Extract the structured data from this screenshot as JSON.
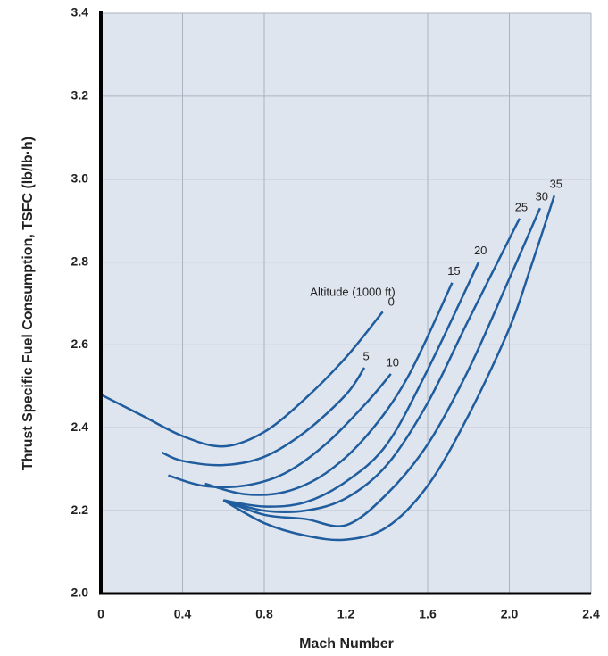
{
  "chart_data": {
    "type": "line",
    "xlabel": "Mach Number",
    "ylabel": "Thrust Specific Fuel Consumption, TSFC (lb/lb·h)",
    "annotation": "Altitude (1000 ft)",
    "xlim": [
      0,
      2.4
    ],
    "ylim": [
      2.0,
      3.4
    ],
    "xticks": [
      0,
      0.4,
      0.8,
      1.2,
      1.6,
      {
        "value": 2.0,
        "label": "2.0"
      },
      2.4
    ],
    "yticks": [
      {
        "value": 2.0,
        "label": "2.0"
      },
      2.2,
      2.4,
      2.6,
      2.8,
      {
        "value": 3.0,
        "label": "3.0"
      },
      3.2,
      3.4
    ],
    "grid": true,
    "series": [
      {
        "name": "0",
        "color": "#1f5d9e",
        "x": [
          0,
          0.2,
          0.4,
          0.6,
          0.8,
          1.0,
          1.2,
          1.38
        ],
        "values": [
          2.48,
          2.43,
          2.38,
          2.355,
          2.39,
          2.47,
          2.57,
          2.68
        ]
      },
      {
        "name": "5",
        "color": "#1f5d9e",
        "x": [
          0.3,
          0.4,
          0.6,
          0.8,
          1.0,
          1.2,
          1.29
        ],
        "values": [
          2.34,
          2.32,
          2.31,
          2.33,
          2.39,
          2.48,
          2.545
        ]
      },
      {
        "name": "10",
        "color": "#1f5d9e",
        "x": [
          0.33,
          0.5,
          0.7,
          0.9,
          1.1,
          1.3,
          1.42
        ],
        "values": [
          2.285,
          2.26,
          2.26,
          2.29,
          2.36,
          2.46,
          2.53
        ]
      },
      {
        "name": "15",
        "color": "#1f5d9e",
        "x": [
          0.51,
          0.7,
          0.9,
          1.1,
          1.3,
          1.5,
          1.72
        ],
        "values": [
          2.265,
          2.24,
          2.245,
          2.29,
          2.38,
          2.52,
          2.75
        ]
      },
      {
        "name": "20",
        "color": "#1f5d9e",
        "x": [
          0.6,
          0.8,
          1.0,
          1.2,
          1.4,
          1.6,
          1.85
        ],
        "values": [
          2.225,
          2.21,
          2.22,
          2.27,
          2.36,
          2.54,
          2.8
        ]
      },
      {
        "name": "25",
        "color": "#1f5d9e",
        "x": [
          0.6,
          0.8,
          1.0,
          1.2,
          1.4,
          1.6,
          1.8,
          2.05
        ],
        "values": [
          2.225,
          2.2,
          2.2,
          2.23,
          2.31,
          2.46,
          2.66,
          2.905
        ]
      },
      {
        "name": "30",
        "color": "#1f5d9e",
        "x": [
          0.6,
          0.8,
          1.0,
          1.2,
          1.4,
          1.6,
          1.8,
          2.0,
          2.15
        ],
        "values": [
          2.225,
          2.19,
          2.18,
          2.165,
          2.24,
          2.36,
          2.54,
          2.76,
          2.93
        ]
      },
      {
        "name": "35",
        "color": "#1f5d9e",
        "x": [
          0.6,
          0.8,
          1.0,
          1.2,
          1.4,
          1.6,
          1.8,
          2.0,
          2.1,
          2.22
        ],
        "values": [
          2.225,
          2.17,
          2.14,
          2.13,
          2.16,
          2.26,
          2.43,
          2.64,
          2.78,
          2.96
        ]
      }
    ]
  }
}
